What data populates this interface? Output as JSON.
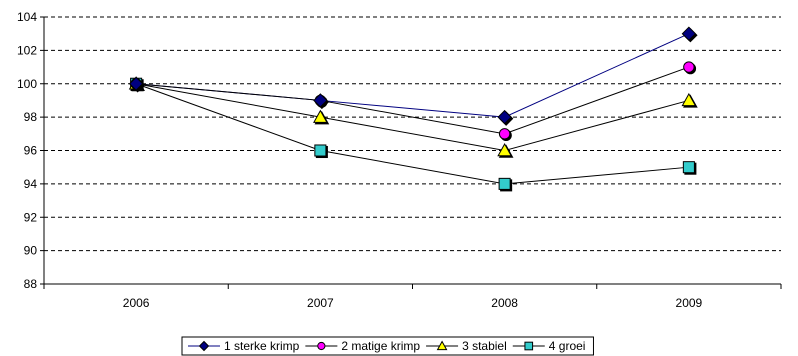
{
  "chart_data": {
    "type": "line",
    "categories": [
      "2006",
      "2007",
      "2008",
      "2009"
    ],
    "y_ticks": [
      "88",
      "90",
      "92",
      "94",
      "96",
      "98",
      "100",
      "102",
      "104"
    ],
    "ylim": [
      88,
      104
    ],
    "grid": "horizontal-dashed",
    "legend_position": "bottom",
    "series": [
      {
        "name": "1  sterke krimp",
        "values": [
          100,
          99,
          98,
          103
        ],
        "marker": "diamond",
        "color": "#000080",
        "line_color": "#000080"
      },
      {
        "name": "2  matige krimp",
        "values": [
          100,
          99,
          97,
          101
        ],
        "marker": "circle",
        "color": "#FF00FF",
        "line_color": "#000000"
      },
      {
        "name": "3  stabiel",
        "values": [
          100,
          98,
          96,
          99
        ],
        "marker": "triangle",
        "color": "#FFFF00",
        "line_color": "#000000"
      },
      {
        "name": "4  groei",
        "values": [
          100,
          96,
          94,
          95
        ],
        "marker": "square",
        "color": "#33CCCC",
        "line_color": "#000000"
      }
    ]
  }
}
